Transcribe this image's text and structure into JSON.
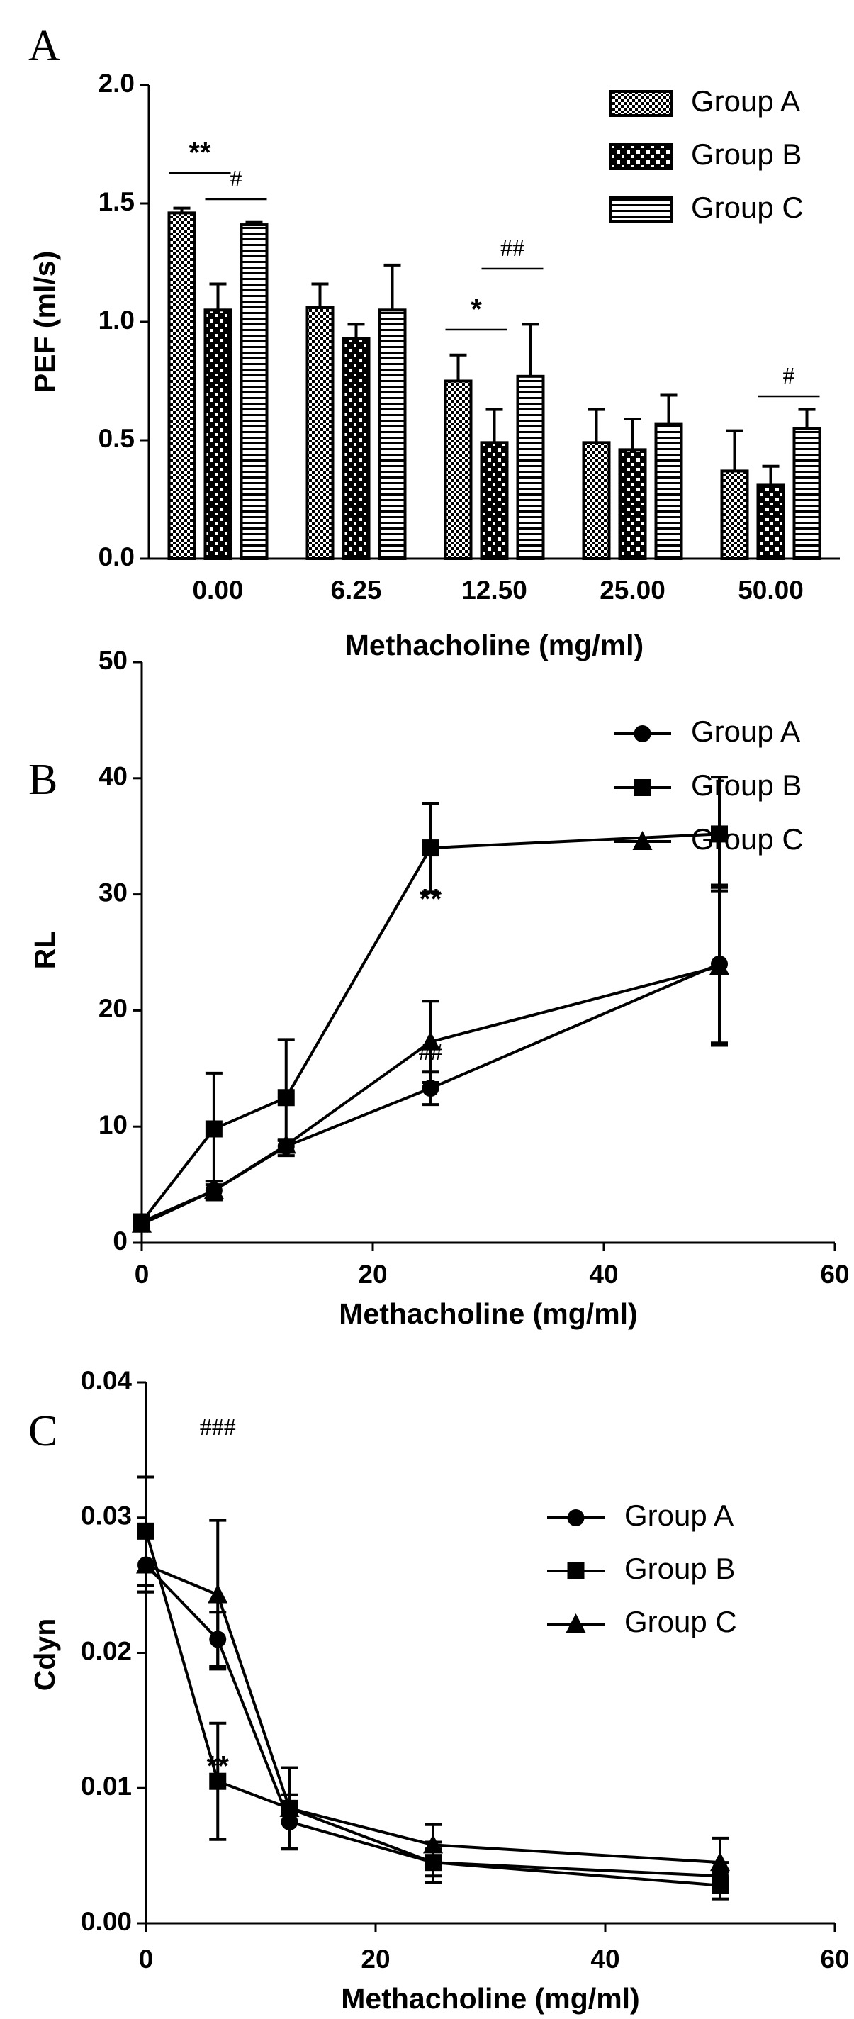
{
  "chart_data": [
    {
      "type": "bar",
      "panel": "A",
      "xlabel": "Methacholine (mg/ml)",
      "ylabel": "PEF (ml/s)",
      "categories": [
        "0.00",
        "6.25",
        "12.50",
        "25.00",
        "50.00"
      ],
      "series": [
        {
          "name": "Group A",
          "color": "#000000",
          "pattern": "fine-check",
          "values": [
            1.46,
            1.06,
            0.75,
            0.49,
            0.37
          ],
          "errors": [
            0.02,
            0.1,
            0.11,
            0.14,
            0.17
          ]
        },
        {
          "name": "Group B",
          "color": "#000000",
          "pattern": "coarse-check",
          "values": [
            1.05,
            0.93,
            0.49,
            0.46,
            0.31
          ],
          "errors": [
            0.11,
            0.06,
            0.14,
            0.13,
            0.08
          ]
        },
        {
          "name": "Group C",
          "color": "#000000",
          "pattern": "hstripe",
          "values": [
            1.41,
            1.05,
            0.77,
            0.57,
            0.55
          ],
          "errors": [
            0.01,
            0.19,
            0.22,
            0.12,
            0.08
          ]
        }
      ],
      "ylim": [
        0,
        2
      ],
      "yticks": [
        {
          "value": 0,
          "label": "0.0"
        },
        0.5,
        {
          "value": 1,
          "label": "1.0"
        },
        1.5,
        {
          "value": 2,
          "label": "2.0"
        }
      ],
      "annotations": [
        "**",
        "#",
        "*",
        "##",
        "#"
      ],
      "legend": "upper right"
    },
    {
      "type": "line",
      "panel": "B",
      "xlabel": "Methacholine (mg/ml)",
      "ylabel": "RL",
      "x": [
        0,
        6.25,
        12.5,
        25,
        50
      ],
      "series": [
        {
          "name": "Group A",
          "color": "#000000",
          "marker": "circle",
          "values": [
            1.8,
            4.5,
            8.3,
            13.3,
            24
          ],
          "errors": [
            0.3,
            0.8,
            0.5,
            1.4,
            6.8
          ]
        },
        {
          "name": "Group B",
          "color": "#000000",
          "marker": "square",
          "values": [
            1.8,
            9.8,
            12.5,
            34,
            35.2
          ],
          "errors": [
            0.5,
            4.8,
            5,
            3.8,
            4.9
          ]
        },
        {
          "name": "Group C",
          "color": "#000000",
          "marker": "triangle",
          "values": [
            1.6,
            4.5,
            8.4,
            17.3,
            23.8
          ],
          "errors": [
            0.3,
            0.8,
            0.5,
            3.5,
            6.8
          ]
        }
      ],
      "xlim": [
        0,
        60
      ],
      "xticks": [
        0,
        20,
        40,
        60
      ],
      "ylim": [
        0,
        50
      ],
      "yticks": [
        0,
        10,
        20,
        30,
        40,
        50
      ],
      "annotations": [
        "**",
        "##"
      ],
      "legend": "upper right"
    },
    {
      "type": "line",
      "panel": "C",
      "xlabel": "Methacholine (mg/ml)",
      "ylabel": "Cdyn",
      "x": [
        0,
        6.25,
        12.5,
        25,
        50
      ],
      "series": [
        {
          "name": "Group A",
          "color": "#000000",
          "marker": "circle",
          "values": [
            0.0265,
            0.021,
            0.0075,
            0.0045,
            0.0035
          ],
          "errors": [
            0.002,
            0.002,
            0.002,
            0.001,
            0.001
          ]
        },
        {
          "name": "Group B",
          "color": "#000000",
          "marker": "square",
          "values": [
            0.029,
            0.0105,
            0.0085,
            0.0045,
            0.0028
          ],
          "errors": [
            0.004,
            0.0043,
            0.003,
            0.0015,
            0.001
          ]
        },
        {
          "name": "Group C",
          "color": "#000000",
          "marker": "triangle",
          "values": [
            0.0265,
            0.0243,
            0.0085,
            0.0058,
            0.0045
          ],
          "errors": [
            0.002,
            0.0055,
            0.003,
            0.0015,
            0.0018
          ]
        }
      ],
      "xlim": [
        0,
        60
      ],
      "xticks": [
        0,
        20,
        40,
        60
      ],
      "ylim": [
        0,
        0.04
      ],
      "yticks": [
        {
          "value": 0,
          "label": "0.00"
        },
        0.01,
        0.02,
        0.03,
        0.04
      ],
      "annotations": [
        "###",
        "**"
      ],
      "legend": "upper right"
    }
  ]
}
